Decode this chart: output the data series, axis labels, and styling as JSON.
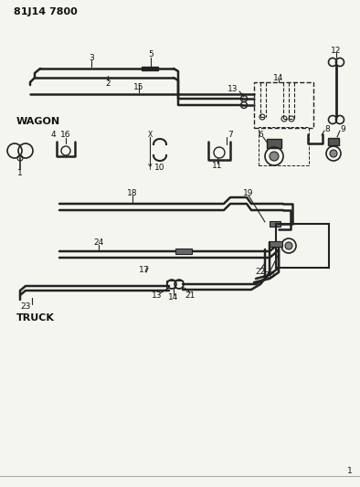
{
  "title": "81J14 7800",
  "bg_color": "#f5f5f0",
  "line_color": "#222222",
  "label_color": "#111111",
  "wagon_label": "WAGON",
  "truck_label": "TRUCK",
  "figsize": [
    3.94,
    5.33
  ],
  "dpi": 100
}
